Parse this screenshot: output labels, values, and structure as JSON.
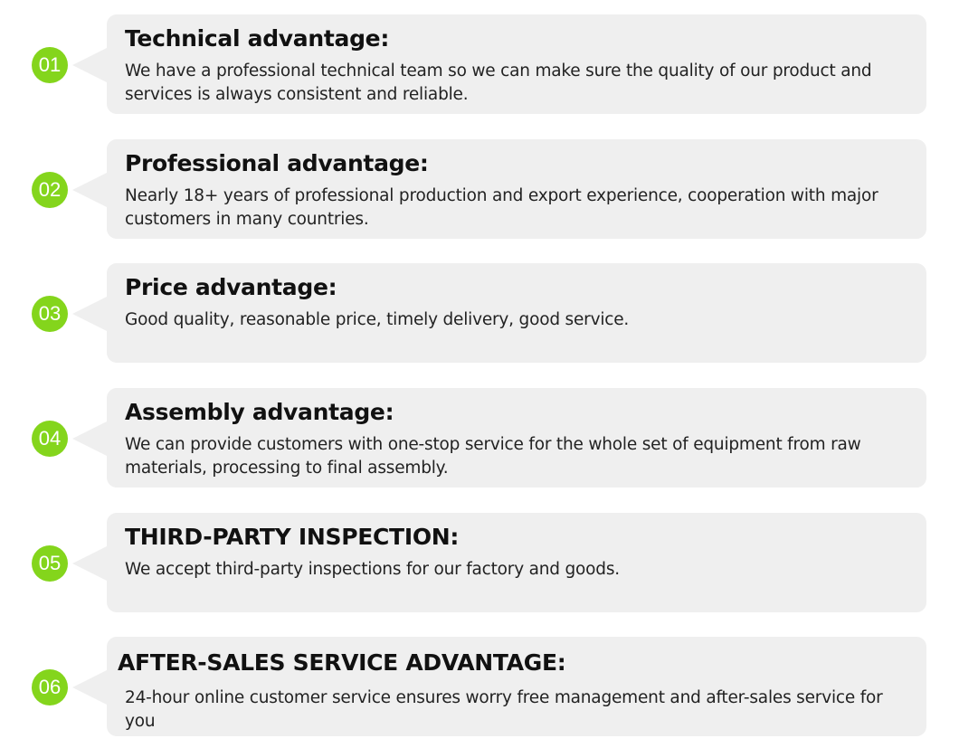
{
  "accent_color": "#84d51c",
  "items": [
    {
      "number": "01",
      "title": "Technical advantage:",
      "text": "We have a professional technical team so we can make sure the quality of our product and services is always consistent and reliable."
    },
    {
      "number": "02",
      "title": "Professional advantage:",
      "text": "Nearly 18+ years of professional production and export experience, cooperation with major customers in many countries."
    },
    {
      "number": "03",
      "title": "Price advantage:",
      "text": "Good quality, reasonable price, timely delivery, good service."
    },
    {
      "number": "04",
      "title": "Assembly advantage:",
      "text": "We can provide customers with one-stop service for the whole set of equipment from raw materials, processing to final assembly."
    },
    {
      "number": "05",
      "title": "THIRD-PARTY INSPECTION:",
      "text": "We accept third-party inspections for our factory and goods."
    },
    {
      "number": "06",
      "title": "AFTER-SALES SERVICE ADVANTAGE:",
      "text": "24-hour online customer service ensures worry free management and after-sales service for you"
    }
  ]
}
